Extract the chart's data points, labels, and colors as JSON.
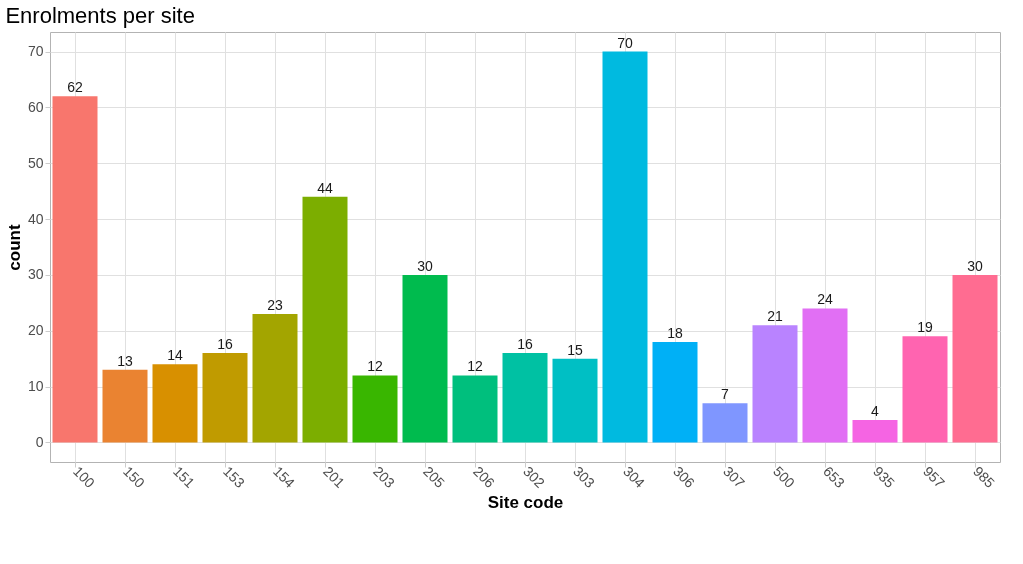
{
  "chart_data": {
    "type": "bar",
    "title": "Enrolments per site",
    "xlabel": "Site code",
    "ylabel": "count",
    "categories": [
      "100",
      "150",
      "151",
      "153",
      "154",
      "201",
      "203",
      "205",
      "206",
      "302",
      "303",
      "304",
      "306",
      "307",
      "500",
      "653",
      "935",
      "957",
      "985"
    ],
    "values": [
      62,
      13,
      14,
      16,
      23,
      44,
      12,
      30,
      12,
      16,
      15,
      70,
      18,
      7,
      21,
      24,
      4,
      19,
      30
    ],
    "colors": [
      "#f8766d",
      "#ea8331",
      "#d89000",
      "#c09b00",
      "#a3a500",
      "#7cae00",
      "#39b600",
      "#00bb4e",
      "#00bf7d",
      "#00c1a3",
      "#00bfc4",
      "#00bae0",
      "#00b0f6",
      "#7f96ff",
      "#b983ff",
      "#e16ff4",
      "#f564e3",
      "#ff64b0",
      "#ff6c91"
    ],
    "ylim": [
      -3.5,
      73.5
    ],
    "yticks": [
      0,
      10,
      20,
      30,
      40,
      50,
      60,
      70
    ],
    "grid": true,
    "data_labels": true
  }
}
